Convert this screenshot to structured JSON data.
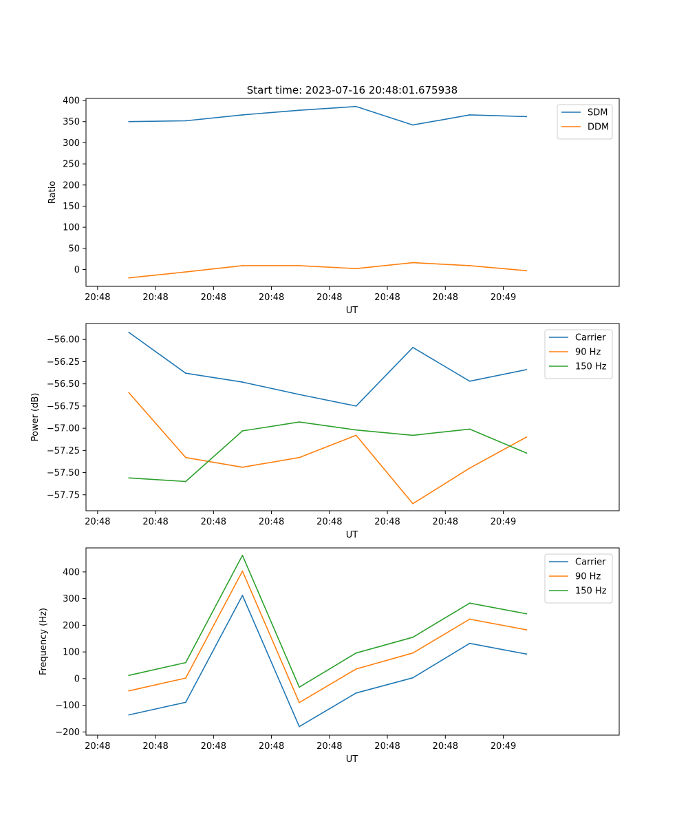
{
  "figure_title": "Start time: 2023-07-16 20:48:01.675938",
  "colors": {
    "blue": "#1f77b4",
    "orange": "#ff7f0e",
    "green": "#2ca02c"
  },
  "chart_data": [
    {
      "type": "line",
      "title": "Start time: 2023-07-16 20:48:01.675938",
      "xlabel": "UT",
      "ylabel": "Ratio",
      "x_tick_labels": [
        "20:48",
        "20:48",
        "20:48",
        "20:48",
        "20:48",
        "20:48",
        "20:48",
        "20:49"
      ],
      "xlim": [
        -0.2,
        9
      ],
      "ylim": [
        -40,
        405
      ],
      "y_ticks": [
        0,
        50,
        100,
        150,
        200,
        250,
        300,
        350,
        400
      ],
      "y_tick_labels": [
        "0",
        "50",
        "100",
        "150",
        "200",
        "250",
        "300",
        "350",
        "400"
      ],
      "legend_position": "upper right",
      "x": [
        0.54,
        1.52,
        2.5,
        3.48,
        4.46,
        5.44,
        6.42,
        7.4
      ],
      "series": [
        {
          "name": "SDM",
          "color": "#1f77b4",
          "values": [
            350,
            352,
            366,
            377,
            386,
            342,
            366,
            362
          ]
        },
        {
          "name": "DDM",
          "color": "#ff7f0e",
          "values": [
            -20,
            -6,
            9,
            9,
            2,
            16,
            9,
            -3
          ]
        }
      ]
    },
    {
      "type": "line",
      "title": "",
      "xlabel": "UT",
      "ylabel": "Power (dB)",
      "x_tick_labels": [
        "20:48",
        "20:48",
        "20:48",
        "20:48",
        "20:48",
        "20:48",
        "20:48",
        "20:49"
      ],
      "xlim": [
        -0.2,
        9
      ],
      "ylim": [
        -57.93,
        -55.82
      ],
      "y_ticks": [
        -56.0,
        -56.25,
        -56.5,
        -56.75,
        -57.0,
        -57.25,
        -57.5,
        -57.75
      ],
      "y_tick_labels": [
        "−56.00",
        "−56.25",
        "−56.50",
        "−56.75",
        "−57.00",
        "−57.25",
        "−57.50",
        "−57.75"
      ],
      "legend_position": "upper right",
      "x": [
        0.54,
        1.52,
        2.5,
        3.48,
        4.46,
        5.44,
        6.42,
        7.4
      ],
      "series": [
        {
          "name": "Carrier",
          "color": "#1f77b4",
          "values": [
            -55.92,
            -56.38,
            -56.48,
            -56.62,
            -56.75,
            -56.09,
            -56.47,
            -56.34
          ]
        },
        {
          "name": "90 Hz",
          "color": "#ff7f0e",
          "values": [
            -56.6,
            -57.33,
            -57.44,
            -57.33,
            -57.08,
            -57.85,
            -57.45,
            -57.1
          ]
        },
        {
          "name": "150 Hz",
          "color": "#2ca02c",
          "values": [
            -57.56,
            -57.6,
            -57.03,
            -56.93,
            -57.02,
            -57.08,
            -57.01,
            -57.28
          ]
        }
      ]
    },
    {
      "type": "line",
      "title": "",
      "xlabel": "UT",
      "ylabel": "Frequency (Hz)",
      "x_tick_labels": [
        "20:48",
        "20:48",
        "20:48",
        "20:48",
        "20:48",
        "20:48",
        "20:48",
        "20:49"
      ],
      "xlim": [
        -0.2,
        9
      ],
      "ylim": [
        -212,
        490
      ],
      "y_ticks": [
        -200,
        -100,
        0,
        100,
        200,
        300,
        400
      ],
      "y_tick_labels": [
        "−200",
        "−100",
        "0",
        "100",
        "200",
        "300",
        "400"
      ],
      "legend_position": "upper right",
      "x": [
        0.54,
        1.52,
        2.5,
        3.48,
        4.46,
        5.44,
        6.42,
        7.4
      ],
      "series": [
        {
          "name": "Carrier",
          "color": "#1f77b4",
          "values": [
            -136,
            -89,
            312,
            -180,
            -54,
            3,
            132,
            92
          ]
        },
        {
          "name": "90 Hz",
          "color": "#ff7f0e",
          "values": [
            -46,
            2,
            403,
            -90,
            36,
            96,
            223,
            183
          ]
        },
        {
          "name": "150 Hz",
          "color": "#2ca02c",
          "values": [
            12,
            60,
            462,
            -32,
            96,
            155,
            283,
            243
          ]
        }
      ]
    }
  ]
}
